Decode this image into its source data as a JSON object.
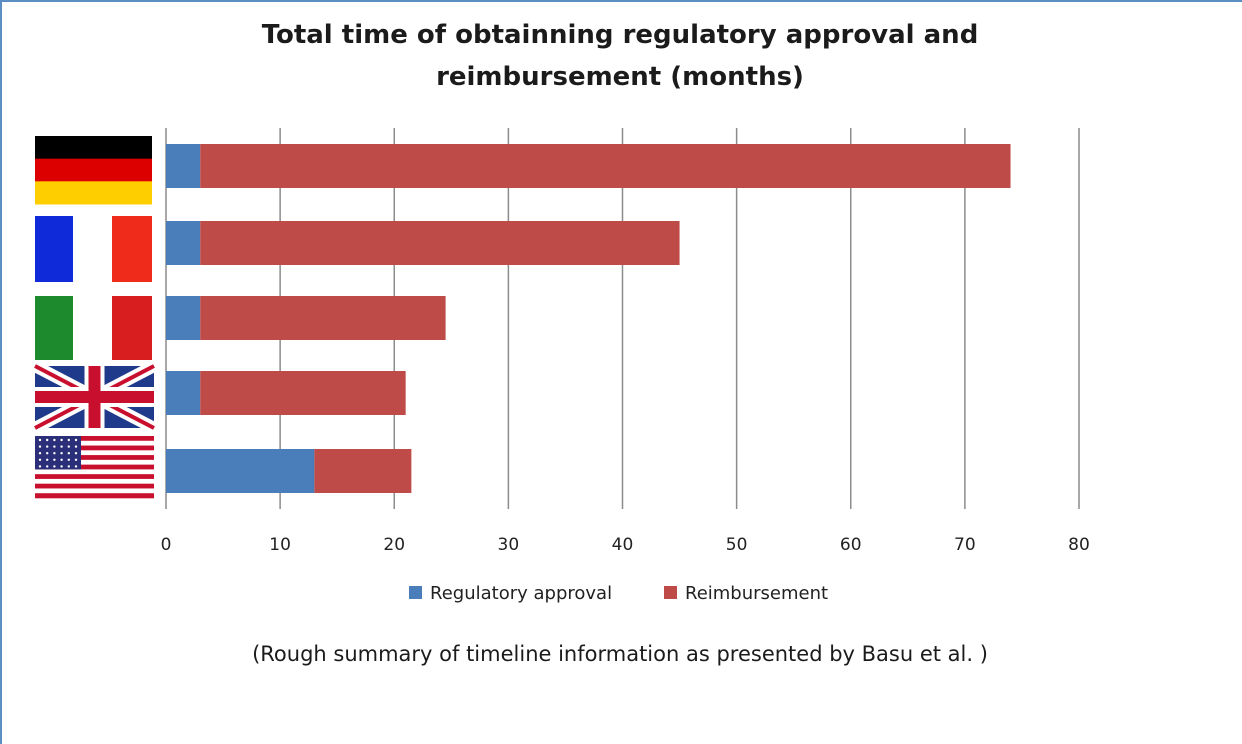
{
  "chart_data": {
    "type": "bar",
    "orientation": "horizontal",
    "stacked": true,
    "title": "Total time of obtainning regulatory approval and reimbursement (months)",
    "categories": [
      "Germany",
      "France",
      "Italy",
      "United Kingdom",
      "United States"
    ],
    "category_labels_shown_as": "flag icons",
    "series": [
      {
        "name": "Regulatory approval",
        "color": "#4a7ebb",
        "values": [
          3,
          3,
          3,
          3,
          13
        ]
      },
      {
        "name": "Reimbursement",
        "color": "#be4b48",
        "values": [
          71,
          42,
          21.5,
          18,
          8.5
        ]
      }
    ],
    "x_ticks": [
      0,
      10,
      20,
      30,
      40,
      50,
      60,
      70,
      80
    ],
    "xlim": [
      0,
      80
    ],
    "grid": "vertical",
    "legend_position": "bottom",
    "xlabel": "",
    "ylabel": ""
  },
  "footnote": "(Rough summary of timeline information as presented by Basu et al. )",
  "flags": [
    {
      "country": "Germany",
      "icon": "germany-flag-icon",
      "colors": [
        "#000000",
        "#dd0000",
        "#ffce00"
      ]
    },
    {
      "country": "France",
      "icon": "france-flag-icon",
      "colors": [
        "#0f2ad8",
        "#ffffff",
        "#ef2b1b"
      ]
    },
    {
      "country": "Italy",
      "icon": "italy-flag-icon",
      "colors": [
        "#1e8a2e",
        "#ffffff",
        "#d81e1e"
      ]
    },
    {
      "country": "United Kingdom",
      "icon": "uk-flag-icon",
      "colors": [
        "#1f3a8a",
        "#ffffff",
        "#c8102e"
      ]
    },
    {
      "country": "United States",
      "icon": "us-flag-icon",
      "colors": [
        "#2b2f7a",
        "#ffffff",
        "#c8102e"
      ]
    }
  ]
}
